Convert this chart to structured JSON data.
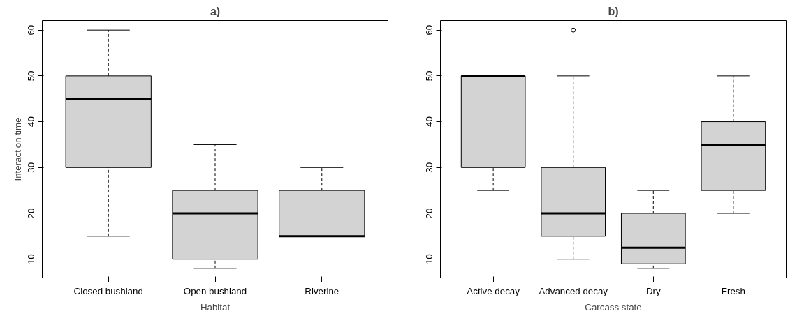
{
  "chart_data": [
    {
      "type": "box",
      "title": "a)",
      "xlabel": "Habitat",
      "ylabel": "Interaction time",
      "categories": [
        "Closed bushland",
        "Open bushland",
        "Riverine"
      ],
      "ylim": [
        5.92,
        62.08
      ],
      "yticks": [
        10,
        20,
        30,
        40,
        50,
        60
      ],
      "series": [
        {
          "color": "#d3d3d3",
          "boxes": [
            {
              "low": 15,
              "q1": 30,
              "median": 45,
              "q3": 50,
              "high": 60
            },
            {
              "low": 8,
              "q1": 10,
              "median": 20,
              "q3": 25,
              "high": 35
            },
            {
              "low": 15,
              "q1": 15,
              "median": 15,
              "q3": 25,
              "high": 30
            }
          ]
        }
      ]
    },
    {
      "type": "box",
      "title": "b)",
      "xlabel": "Carcass state",
      "categories": [
        "Active decay",
        "Advanced decay",
        "Dry",
        "Fresh"
      ],
      "ylim": [
        5.92,
        62.08
      ],
      "yticks": [
        10,
        20,
        30,
        40,
        50,
        60
      ],
      "series": [
        {
          "color": "#d3d3d3",
          "boxes": [
            {
              "low": 25,
              "q1": 30,
              "median": 50,
              "q3": 50,
              "high": 50
            },
            {
              "low": 10,
              "q1": 15,
              "median": 20,
              "q3": 30,
              "high": 50,
              "outliers": [
                60
              ]
            },
            {
              "low": 8,
              "q1": 9,
              "median": 12.5,
              "q3": 20,
              "high": 25
            },
            {
              "low": 20,
              "q1": 25,
              "median": 35,
              "q3": 40,
              "high": 50
            }
          ]
        }
      ]
    }
  ]
}
